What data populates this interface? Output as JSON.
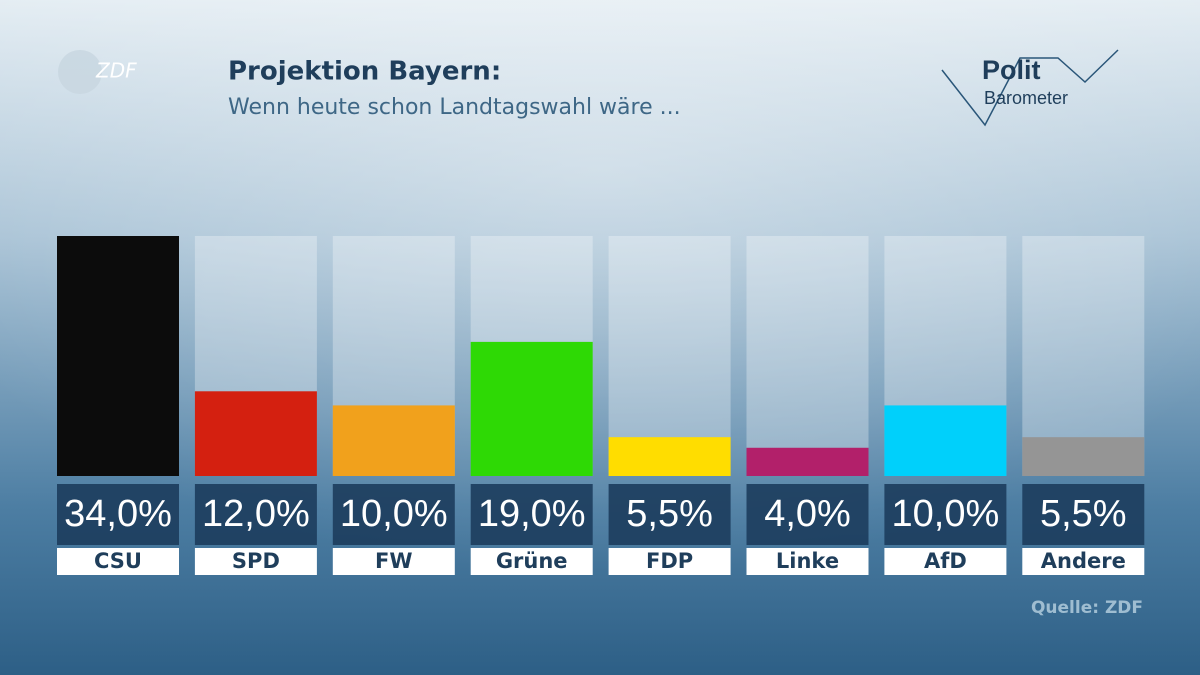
{
  "zdf_logo": "ZDF",
  "brand": {
    "line1": "Polit",
    "line2": "Barometer"
  },
  "chart_data": {
    "type": "bar",
    "title": "Projektion Bayern:",
    "subtitle": "Wenn heute schon Landtagswahl wäre ...",
    "categories": [
      "CSU",
      "SPD",
      "FW",
      "Grüne",
      "FDP",
      "Linke",
      "AfD",
      "Andere"
    ],
    "values": [
      34.0,
      12.0,
      10.0,
      19.0,
      5.5,
      4.0,
      10.0,
      5.5
    ],
    "value_labels": [
      "34,0%",
      "12,0%",
      "10,0%",
      "19,0%",
      "5,5%",
      "4,0%",
      "10,0%",
      "5,5%"
    ],
    "colors": [
      "#0c0c0c",
      "#d42010",
      "#f1a11c",
      "#2ed905",
      "#ffdd00",
      "#b2206a",
      "#00d0fb",
      "#959595"
    ],
    "source": "Quelle: ZDF"
  }
}
